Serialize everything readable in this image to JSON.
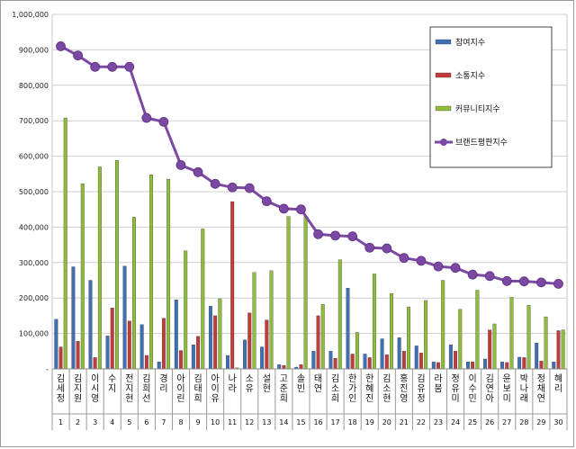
{
  "chart_data": {
    "type": "bar",
    "title": "",
    "xlabel": "",
    "ylabel": "",
    "ylim": [
      0,
      1000000
    ],
    "yticks": [
      "-",
      "100,000",
      "200,000",
      "300,000",
      "400,000",
      "500,000",
      "600,000",
      "700,000",
      "800,000",
      "900,000",
      "1,000,000"
    ],
    "grid": true,
    "legend_position": "top-right",
    "categories": [
      "김세정",
      "김지원",
      "이시영",
      "수지",
      "전지현",
      "김희선",
      "경리",
      "아이린",
      "김태희",
      "아이유",
      "나라",
      "소유",
      "설현",
      "고준희",
      "솔빈",
      "태연",
      "김소희",
      "한가인",
      "한혜진",
      "김소현",
      "홍진영",
      "김유정",
      "라붐",
      "정유미",
      "이수민",
      "김연아",
      "윤보미",
      "박나래",
      "정채연",
      "혜리"
    ],
    "indices": [
      "1",
      "2",
      "3",
      "4",
      "5",
      "6",
      "7",
      "8",
      "9",
      "10",
      "11",
      "12",
      "13",
      "14",
      "15",
      "16",
      "17",
      "18",
      "19",
      "20",
      "21",
      "22",
      "23",
      "24",
      "25",
      "26",
      "27",
      "28",
      "29",
      "30"
    ],
    "series": [
      {
        "name": "참여지수",
        "kind": "bar",
        "color": "#3f6fb4",
        "values": [
          140000,
          288000,
          250000,
          93000,
          290000,
          125000,
          20000,
          195000,
          68000,
          177000,
          38000,
          82000,
          62000,
          12000,
          5000,
          50000,
          50000,
          228000,
          42000,
          85000,
          88000,
          65000,
          20000,
          68000,
          20000,
          28000,
          20000,
          33000,
          73000,
          20000
        ]
      },
      {
        "name": "소통지수",
        "kind": "bar",
        "color": "#c33b3b",
        "values": [
          62000,
          78000,
          32000,
          172000,
          135000,
          38000,
          143000,
          52000,
          92000,
          150000,
          472000,
          158000,
          138000,
          10000,
          12000,
          150000,
          30000,
          42000,
          32000,
          40000,
          50000,
          45000,
          18000,
          50000,
          20000,
          110000,
          18000,
          32000,
          22000,
          108000
        ]
      },
      {
        "name": "커뮤니티지수",
        "kind": "bar",
        "color": "#8fbc3a",
        "values": [
          708000,
          522000,
          570000,
          588000,
          428000,
          548000,
          535000,
          333000,
          395000,
          198000,
          3000,
          272000,
          277000,
          430000,
          430000,
          182000,
          308000,
          103000,
          268000,
          213000,
          175000,
          193000,
          250000,
          168000,
          222000,
          127000,
          202000,
          180000,
          147000,
          110000
        ]
      },
      {
        "name": "브랜드평판지수",
        "kind": "line",
        "color": "#7b48a3",
        "values": [
          910000,
          884000,
          852000,
          852000,
          852000,
          708000,
          697000,
          575000,
          555000,
          522000,
          512000,
          510000,
          473000,
          452000,
          450000,
          380000,
          376000,
          374000,
          342000,
          340000,
          313000,
          305000,
          289000,
          285000,
          266000,
          262000,
          248000,
          247000,
          244000,
          240000
        ]
      }
    ]
  }
}
